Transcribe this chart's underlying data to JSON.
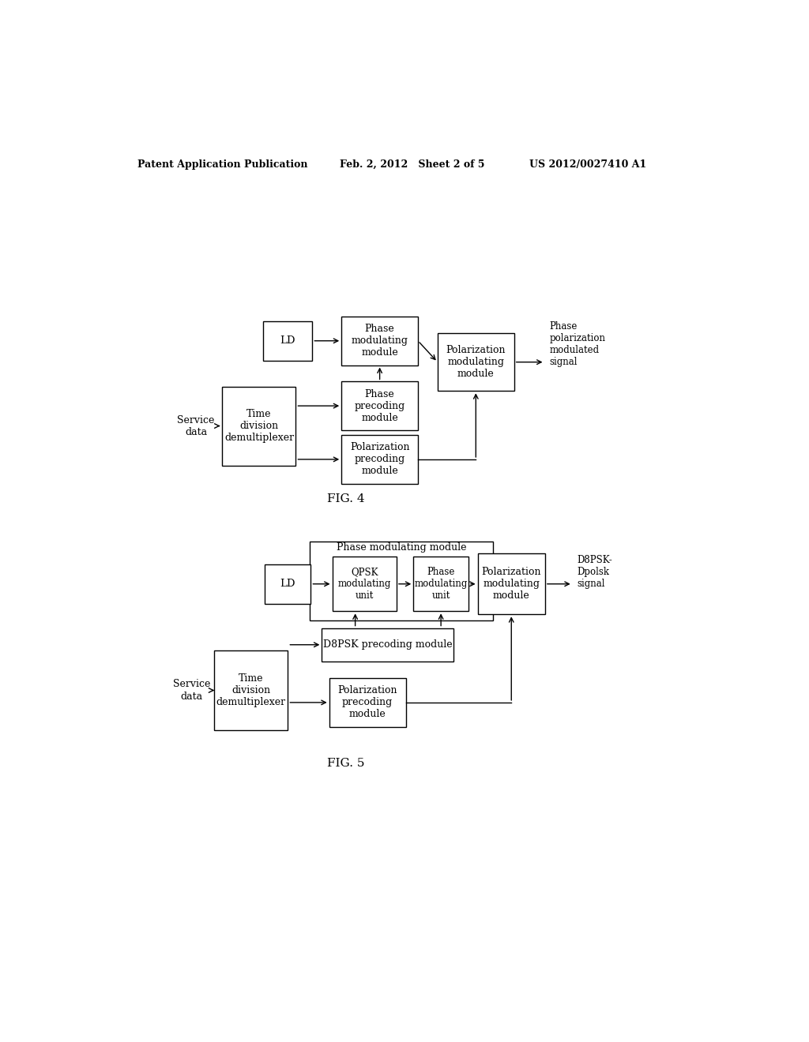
{
  "bg_color": "#ffffff",
  "header_left": "Patent Application Publication",
  "header_mid": "Feb. 2, 2012   Sheet 2 of 5",
  "header_right": "US 2012/0027410 A1",
  "fig4_label": "FIG. 4",
  "fig5_label": "FIG. 5"
}
